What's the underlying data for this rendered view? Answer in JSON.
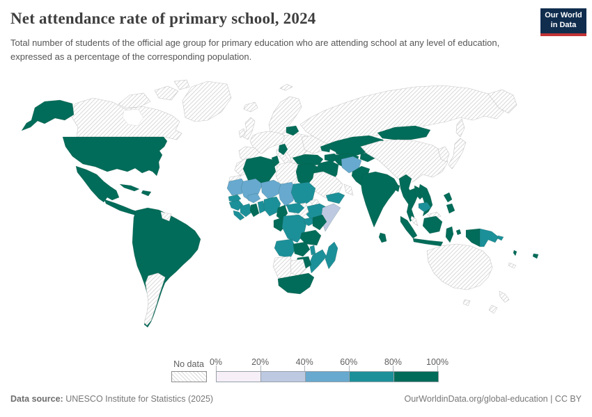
{
  "header": {
    "title": "Net attendance rate of primary school, 2024",
    "subtitle": "Total number of students of the official age group for primary education who are attending school at any level of education, expressed as a percentage of the corresponding population."
  },
  "logo": {
    "line1": "Our World",
    "line2": "in Data",
    "bg_color": "#102d4e",
    "bar_color": "#c23335"
  },
  "legend": {
    "no_data_label": "No data",
    "tick_labels": [
      "0%",
      "20%",
      "40%",
      "60%",
      "80%",
      "100%"
    ]
  },
  "footer": {
    "source_label": "Data source:",
    "source_value": " UNESCO Institute for Statistics (2025)",
    "right_text": "OurWorldinData.org/global-education | CC BY"
  },
  "chart_data": {
    "type": "choropleth_map",
    "title": "Net attendance rate of primary school, 2024",
    "unit": "%",
    "legend_position": "bottom",
    "bins": [
      {
        "key": "0-20",
        "range": "0–20%",
        "color": "#f6eff7"
      },
      {
        "key": "20-40",
        "range": "20–40%",
        "color": "#bdc9e1"
      },
      {
        "key": "40-60",
        "range": "40–60%",
        "color": "#67a9cf"
      },
      {
        "key": "60-80",
        "range": "60–80%",
        "color": "#1c9099"
      },
      {
        "key": "80-100",
        "range": "80–100%",
        "color": "#016c59"
      }
    ],
    "no_data": {
      "label": "No data",
      "pattern": "diagonal-hatch",
      "fill": "#ffffff",
      "line_color": "#d9d9d9"
    },
    "countries": {
      "United States": "80-100",
      "Mexico": "80-100",
      "Central America": "80-100",
      "Cuba": "80-100",
      "Dominican Republic": "80-100",
      "Canada": "no-data",
      "Greenland": "no-data",
      "Brazil": "80-100",
      "Colombia": "80-100",
      "Venezuela": "80-100",
      "Ecuador": "80-100",
      "Peru": "80-100",
      "Bolivia": "80-100",
      "Paraguay": "80-100",
      "Uruguay": "80-100",
      "Chile": "80-100",
      "Argentina": "no-data",
      "Guyana": "no-data",
      "Iceland": "no-data",
      "United Kingdom": "no-data",
      "Ireland": "no-data",
      "Norway": "no-data",
      "France": "no-data",
      "Spain": "no-data",
      "Italy": "no-data",
      "Poland": "no-data",
      "Ukraine": "no-data",
      "Belarus": "80-100",
      "Serbia": "80-100",
      "Turkey": "80-100",
      "Georgia": "80-100",
      "Russia": "no-data",
      "Kazakhstan": "80-100",
      "Uzbekistan": "80-100",
      "Turkmenistan": "80-100",
      "Kyrgyzstan": "80-100",
      "Tajikistan": "80-100",
      "Mongolia": "80-100",
      "China": "no-data",
      "Japan": "no-data",
      "South Korea": "no-data",
      "Iraq": "80-100",
      "Iran": "80-100",
      "Saudi Arabia": "no-data",
      "Yemen": "60-80",
      "Oman": "no-data",
      "Jordan": "no-data",
      "Afghanistan": "40-60",
      "Pakistan": "80-100",
      "India": "80-100",
      "Nepal": "80-100",
      "Bangladesh": "80-100",
      "Sri Lanka": "80-100",
      "Myanmar": "80-100",
      "Thailand": "80-100",
      "Laos": "80-100",
      "Vietnam": "80-100",
      "Cambodia": "60-80",
      "Malaysia": "no-data",
      "Philippines": "80-100",
      "Indonesia": "80-100",
      "Papua New Guinea": "60-80",
      "Solomon Islands": "60-80",
      "Vanuatu": "80-100",
      "Fiji": "80-100",
      "New Caledonia": "no-data",
      "Australia": "no-data",
      "New Zealand": "no-data",
      "Morocco": "no-data",
      "Western Sahara": "no-data",
      "Algeria": "80-100",
      "Tunisia": "80-100",
      "Libya": "no-data",
      "Egypt": "80-100",
      "Mauritania": "40-60",
      "Mali": "40-60",
      "Niger": "40-60",
      "Chad": "40-60",
      "Sudan": "60-80",
      "Eritrea": "no-data",
      "Ethiopia": "60-80",
      "Somalia": "20-40",
      "South Sudan": "no-data",
      "Senegal": "60-80",
      "Guinea": "60-80",
      "Sierra Leone": "60-80",
      "Burkina Faso": "40-60",
      "Cote d'Ivoire": "60-80",
      "Ghana": "80-100",
      "Togo": "60-80",
      "Benin": "60-80",
      "Nigeria": "60-80",
      "Cameroon": "80-100",
      "Central African Republic": "60-80",
      "Gabon": "80-100",
      "Republic of the Congo": "80-100",
      "Democratic Republic of Congo": "60-80",
      "Uganda": "60-80",
      "Kenya": "80-100",
      "Tanzania": "80-100",
      "Angola": "60-80",
      "Zambia": "80-100",
      "Malawi": "60-80",
      "Mozambique": "60-80",
      "Zimbabwe": "80-100",
      "Namibia": "no-data",
      "Botswana": "no-data",
      "South Africa": "80-100",
      "Madagascar": "60-80"
    }
  }
}
